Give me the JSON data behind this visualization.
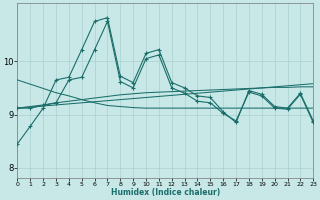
{
  "xlabel": "Humidex (Indice chaleur)",
  "xlim": [
    0,
    23
  ],
  "ylim": [
    7.8,
    11.1
  ],
  "yticks": [
    8,
    9,
    10
  ],
  "xticks": [
    0,
    1,
    2,
    3,
    4,
    5,
    6,
    7,
    8,
    9,
    10,
    11,
    12,
    13,
    14,
    15,
    16,
    17,
    18,
    19,
    20,
    21,
    22,
    23
  ],
  "background_color": "#c8e8e8",
  "grid_color": "#aacfcf",
  "line_color": "#1a6e6a",
  "line1_main": [
    8.45,
    8.78,
    9.12,
    9.65,
    9.7,
    10.22,
    10.75,
    10.82,
    9.72,
    9.6,
    10.15,
    10.22,
    9.6,
    9.5,
    9.35,
    9.32,
    9.05,
    8.85,
    9.45,
    9.38,
    9.15,
    9.12,
    9.4,
    8.88
  ],
  "line2_main": [
    9.12,
    9.12,
    9.17,
    9.22,
    9.65,
    9.7,
    10.22,
    10.75,
    9.62,
    9.5,
    10.05,
    10.12,
    9.5,
    9.4,
    9.25,
    9.22,
    9.02,
    8.88,
    9.42,
    9.35,
    9.12,
    9.1,
    9.38,
    8.85
  ],
  "line_trend1": [
    9.65,
    9.57,
    9.49,
    9.41,
    9.35,
    9.28,
    9.22,
    9.17,
    9.15,
    9.13,
    9.12,
    9.12,
    9.12,
    9.12,
    9.12,
    9.12,
    9.12,
    9.12,
    9.12,
    9.12,
    9.12,
    9.12,
    9.12,
    9.12
  ],
  "line_trend2": [
    9.12,
    9.15,
    9.18,
    9.22,
    9.25,
    9.28,
    9.31,
    9.34,
    9.37,
    9.39,
    9.41,
    9.42,
    9.43,
    9.44,
    9.45,
    9.46,
    9.47,
    9.48,
    9.49,
    9.5,
    9.51,
    9.51,
    9.52,
    9.52
  ],
  "line_trend3": [
    9.12,
    9.14,
    9.16,
    9.18,
    9.2,
    9.22,
    9.24,
    9.26,
    9.28,
    9.3,
    9.32,
    9.34,
    9.36,
    9.38,
    9.4,
    9.42,
    9.44,
    9.46,
    9.48,
    9.5,
    9.52,
    9.54,
    9.56,
    9.58
  ]
}
